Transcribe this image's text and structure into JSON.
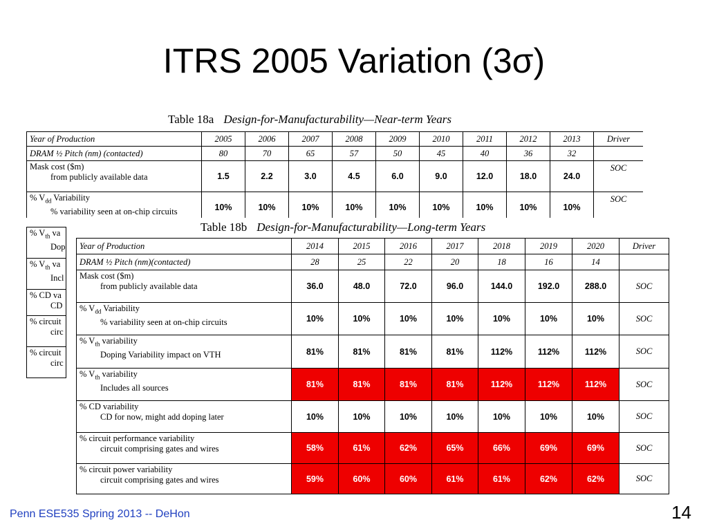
{
  "slide": {
    "title": "ITRS 2005 Variation (3σ)",
    "footer": "Penn ESE535 Spring 2013 -- DeHon",
    "page_number": "14"
  },
  "table_a": {
    "caption_name": "Table 18a",
    "caption_title": "Design-for-Manufacturability—Near-term Years",
    "header_label": "Year of Production",
    "years": [
      "2005",
      "2006",
      "2007",
      "2008",
      "2009",
      "2010",
      "2011",
      "2012",
      "2013"
    ],
    "driver_label": "Driver",
    "pitch_label": "DRAM ½ Pitch (nm) (contacted)",
    "pitch": [
      "80",
      "70",
      "65",
      "57",
      "50",
      "45",
      "40",
      "36",
      "32"
    ],
    "rows": [
      {
        "l1": "Mask cost ($m)",
        "l2": "from publicly available data",
        "values": [
          "1.5",
          "2.2",
          "3.0",
          "4.5",
          "6.0",
          "9.0",
          "12.0",
          "18.0",
          "24.0"
        ],
        "driver": "SOC"
      },
      {
        "l1": "% V",
        "sub": "dd",
        "l1b": " Variability",
        "l2": "% variability seen at on-chip circuits",
        "values": [
          "10%",
          "10%",
          "10%",
          "10%",
          "10%",
          "10%",
          "10%",
          "10%",
          "10%"
        ],
        "driver": "SOC"
      }
    ],
    "hidden_rows": [
      {
        "l1": "% V",
        "sub": "th",
        "l1b": " va",
        "l2": "Dop"
      },
      {
        "l1": "% V",
        "sub": "th",
        "l1b": " va",
        "l2": "Incl"
      },
      {
        "l1": "% CD va",
        "l2": "CD"
      },
      {
        "l1": "% circuit",
        "l2": "circ"
      },
      {
        "l1": "% circuit",
        "l2": "circ"
      }
    ]
  },
  "table_b": {
    "caption_name": "Table 18b",
    "caption_title": "Design-for-Manufacturability—Long-term Years",
    "header_label": "Year of Production",
    "years": [
      "2014",
      "2015",
      "2016",
      "2017",
      "2018",
      "2019",
      "2020"
    ],
    "driver_label": "Driver",
    "pitch_label": "DRAM ½ Pitch (nm)(contacted)",
    "pitch": [
      "28",
      "25",
      "22",
      "20",
      "18",
      "16",
      "14"
    ],
    "rows": [
      {
        "l1": "Mask cost ($m)",
        "l2": "from publicly available data",
        "values": [
          "36.0",
          "48.0",
          "72.0",
          "96.0",
          "144.0",
          "192.0",
          "288.0"
        ],
        "red": false,
        "driver": "SOC"
      },
      {
        "l1": "% V",
        "sub": "dd",
        "l1b": " Variability",
        "l2": "% variability seen at on-chip circuits",
        "values": [
          "10%",
          "10%",
          "10%",
          "10%",
          "10%",
          "10%",
          "10%"
        ],
        "red": false,
        "driver": "SOC"
      },
      {
        "l1": "% V",
        "sub": "th",
        "l1b": " variability",
        "l2": "Doping Variability impact on VTH",
        "values": [
          "81%",
          "81%",
          "81%",
          "81%",
          "112%",
          "112%",
          "112%"
        ],
        "red": false,
        "driver": "SOC"
      },
      {
        "l1": "% V",
        "sub": "th",
        "l1b": " variability",
        "l2": "Includes all sources",
        "values": [
          "81%",
          "81%",
          "81%",
          "81%",
          "112%",
          "112%",
          "112%"
        ],
        "red": true,
        "driver": "SOC"
      },
      {
        "l1": "% CD variability",
        "l2": "CD for now, might add doping later",
        "values": [
          "10%",
          "10%",
          "10%",
          "10%",
          "10%",
          "10%",
          "10%"
        ],
        "red": false,
        "driver": "SOC"
      },
      {
        "l1": "% circuit performance variability",
        "l2": "circuit comprising gates and wires",
        "values": [
          "58%",
          "61%",
          "62%",
          "65%",
          "66%",
          "69%",
          "69%"
        ],
        "red": true,
        "driver": "SOC"
      },
      {
        "l1": "% circuit power variability",
        "l2": "circuit comprising gates and wires",
        "values": [
          "59%",
          "60%",
          "60%",
          "61%",
          "61%",
          "62%",
          "62%"
        ],
        "red": true,
        "driver": "SOC"
      }
    ]
  },
  "colors": {
    "highlight": "#ee0000",
    "footer": "#1f3fbf"
  }
}
